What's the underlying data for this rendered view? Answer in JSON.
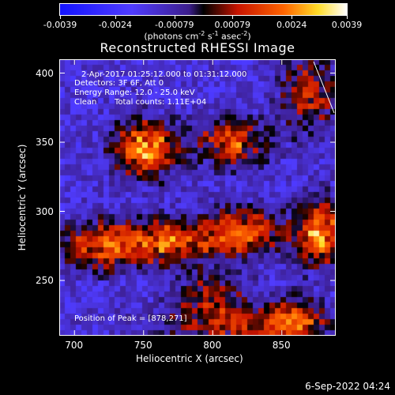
{
  "colorbar": {
    "ticks": [
      "-0.0039",
      "-0.0024",
      "-0.00079",
      "0.00079",
      "0.0024",
      "0.0039"
    ],
    "unit_prefix": "(photons cm",
    "unit_exp1": "-2",
    "unit_mid": " s",
    "unit_exp2": "-1",
    "unit_mid2": " asec",
    "unit_exp3": "-2",
    "unit_suffix": ")"
  },
  "title": "Reconstructed RHESSI Image",
  "info": {
    "time_range": "2-Apr-2017 01:25:12.000 to 01:31:12.000",
    "detectors": "Detectors: 3F 6F, Att 0",
    "energy": "Energy Range: 12.0 - 25.0 keV",
    "method": "Clean",
    "counts": "Total counts: 1.11E+04",
    "peak": "Position of Peak = [878,271]"
  },
  "chart_data": {
    "type": "heatmap",
    "title": "Reconstructed RHESSI Image",
    "xlabel": "Heliocentric X (arcsec)",
    "ylabel": "Heliocentric Y (arcsec)",
    "xlim": [
      689,
      889
    ],
    "ylim": [
      210,
      410
    ],
    "xticks": [
      700,
      750,
      800,
      850
    ],
    "yticks": [
      250,
      300,
      350,
      400
    ],
    "colorbar_range": [
      -0.0039,
      0.0039
    ],
    "peak": [
      878,
      271
    ],
    "features": [
      {
        "x": 752,
        "y": 345,
        "sx": 16,
        "sy": 14,
        "amp": 0.0039
      },
      {
        "x": 815,
        "y": 350,
        "sx": 18,
        "sy": 12,
        "amp": 0.0028
      },
      {
        "x": 870,
        "y": 385,
        "sx": 14,
        "sy": 18,
        "amp": 0.0026
      },
      {
        "x": 720,
        "y": 275,
        "sx": 22,
        "sy": 12,
        "amp": 0.003
      },
      {
        "x": 770,
        "y": 278,
        "sx": 22,
        "sy": 11,
        "amp": 0.003
      },
      {
        "x": 822,
        "y": 285,
        "sx": 20,
        "sy": 12,
        "amp": 0.0031
      },
      {
        "x": 878,
        "y": 285,
        "sx": 12,
        "sy": 16,
        "amp": 0.0039
      },
      {
        "x": 800,
        "y": 240,
        "sx": 18,
        "sy": 12,
        "amp": 0.0018
      },
      {
        "x": 815,
        "y": 218,
        "sx": 40,
        "sy": 10,
        "amp": 0.0022
      },
      {
        "x": 860,
        "y": 220,
        "sx": 14,
        "sy": 12,
        "amp": 0.0026
      }
    ]
  },
  "timestamp": "6-Sep-2022 04:24"
}
